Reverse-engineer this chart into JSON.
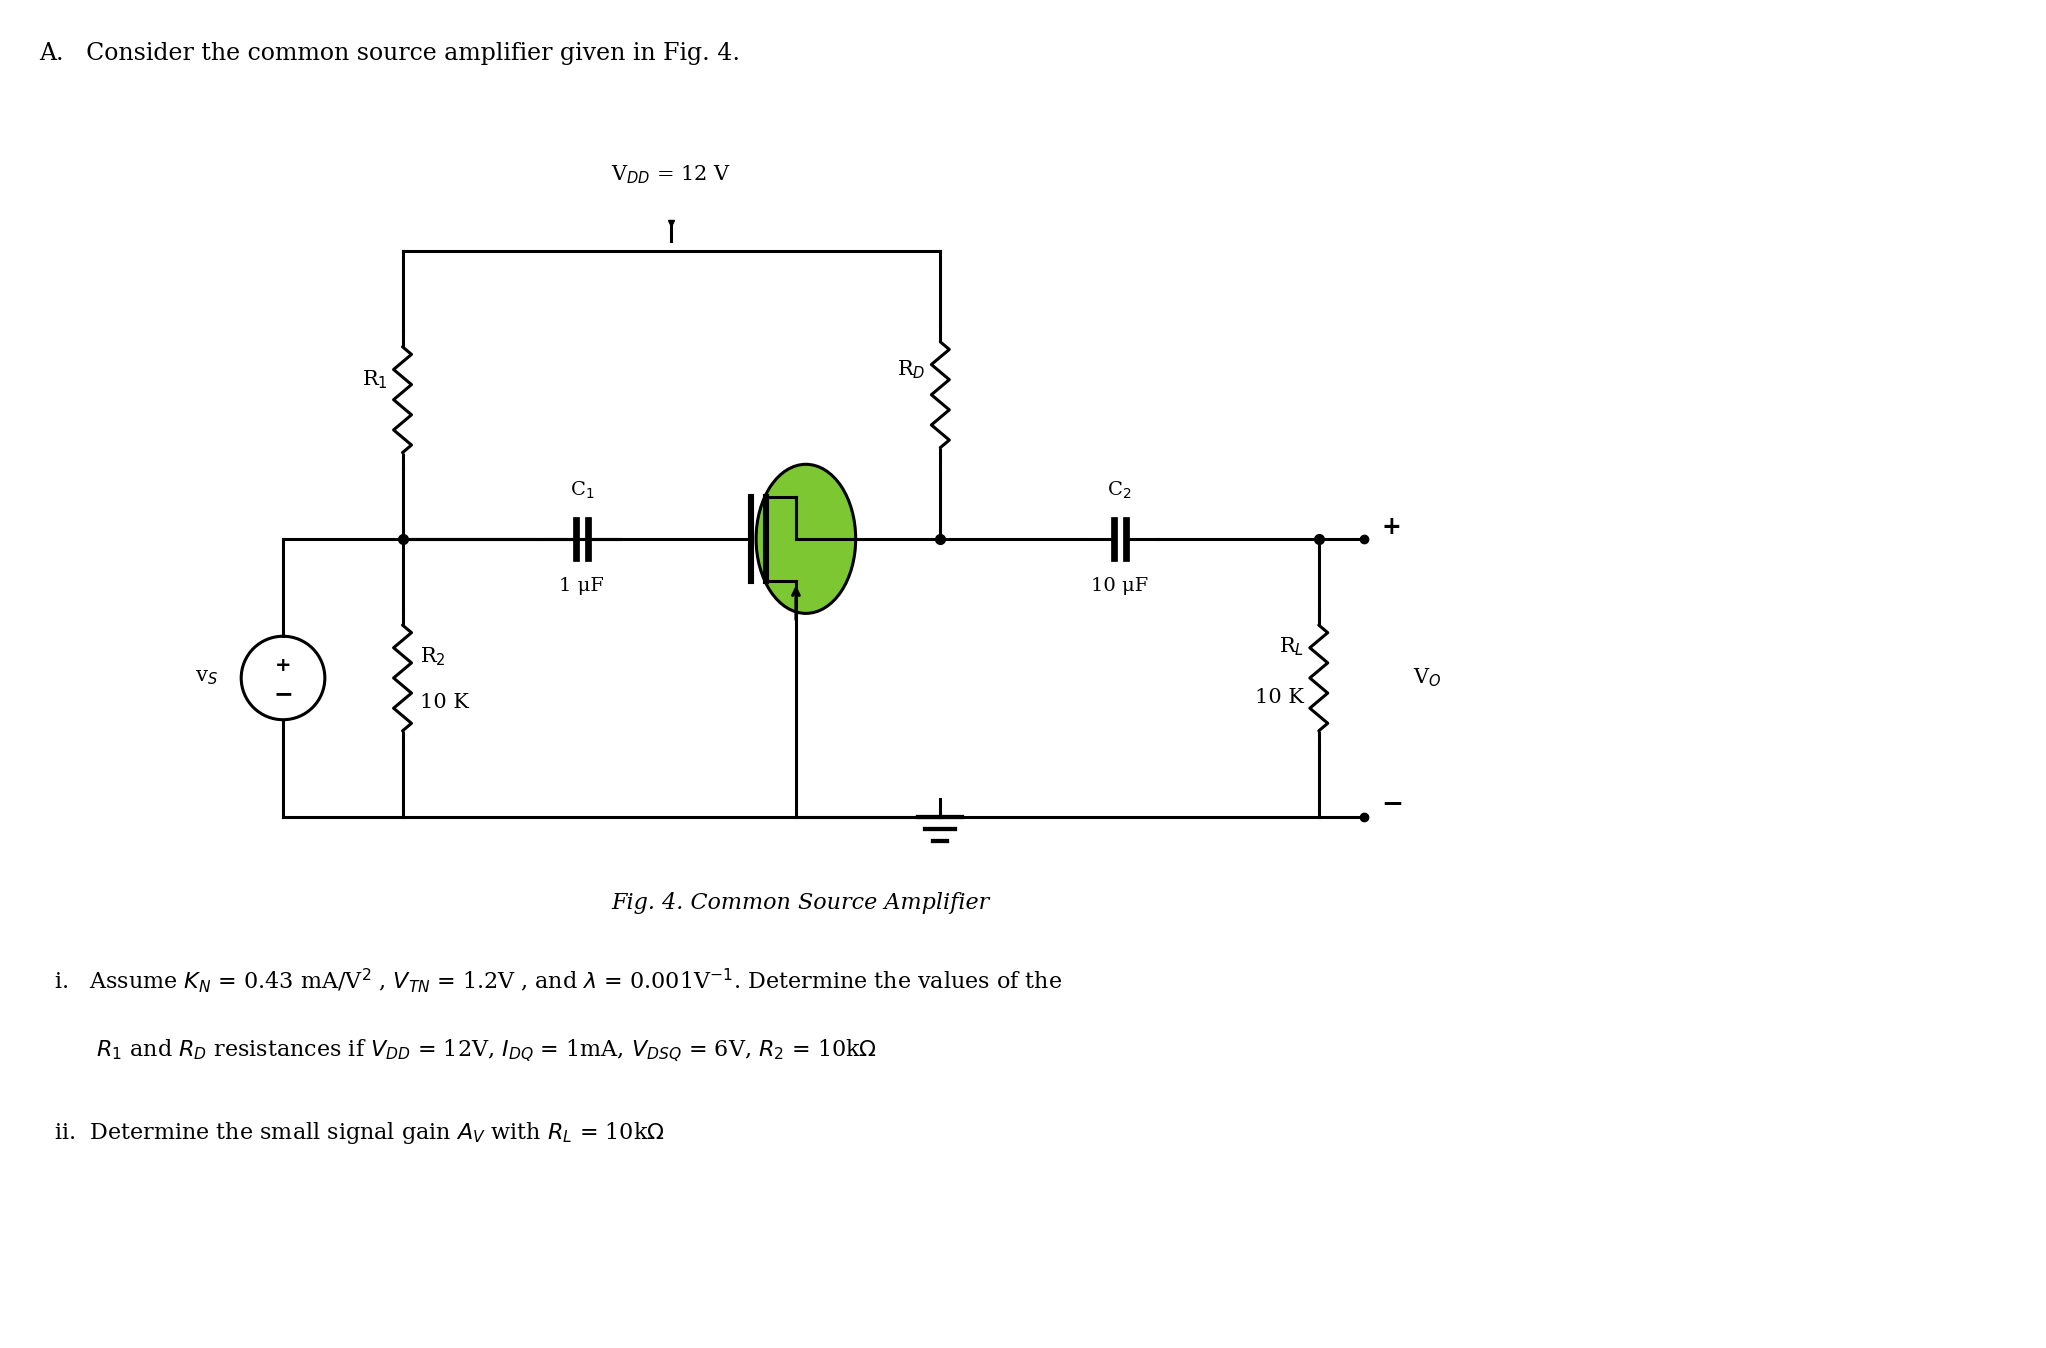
{
  "title_text": "A.   Consider the common source amplifier given in Fig. 4.",
  "fig_caption": "Fig. 4. Common Source Amplifier",
  "vdd_label": "V$_{DD}$ = 12 V",
  "r1_label": "R$_1$",
  "r2_label": "R$_2$",
  "r2_val": "10 K",
  "rd_label": "R$_D$",
  "c1_label": "C$_1$",
  "c1_val": "1 μF",
  "c2_label": "C$_2$",
  "c2_val": "10 μF",
  "rl_label": "R$_L$",
  "rl_val": "10 K",
  "vs_label": "v$_S$",
  "vo_label": "V$_O$",
  "line_color": "#000000",
  "mosfet_body_color": "#7dc832",
  "bg_color": "#ffffff",
  "item_i_prefix": "i.   Assume ",
  "item_i_suffix": " Determine the values of the",
  "item_i_line2": "      R$_1$ and R$_D$ resistances if V$_{DD}$ = 12V, I$_{DQ}$ = 1mA, V$_{DSQ}$ = 6V, R$_2$ = 10kΩ",
  "item_ii": "ii.  Determine the small signal gain A$_V$ with R$_L$ = 10kΩ"
}
